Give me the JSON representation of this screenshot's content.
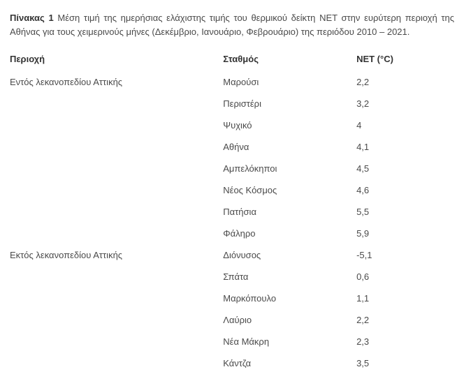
{
  "caption": {
    "lead": "Πίνακας 1",
    "text": " Μέση τιμή της ημερήσιας ελάχιστης τιμής του θερμικού δείκτη ΝΕΤ στην ευρύτερη περιοχή της Αθήνας για τους χειμερινούς μήνες (Δεκέμβριο, Ιανουάριο, Φεβρουάριο) της περιόδου 2010 – 2021."
  },
  "headers": {
    "region": "Περιοχή",
    "station": "Σταθμός",
    "net": "NET (°C)"
  },
  "groups": [
    {
      "region": "Εντός λεκανοπεδίου Αττικής",
      "rows": [
        {
          "station": "Μαρούσι",
          "net": "2,2"
        },
        {
          "station": "Περιστέρι",
          "net": "3,2"
        },
        {
          "station": "Ψυχικό",
          "net": "4"
        },
        {
          "station": "Αθήνα",
          "net": "4,1"
        },
        {
          "station": "Αμπελόκηποι",
          "net": "4,5"
        },
        {
          "station": "Νέος Κόσμος",
          "net": "4,6"
        },
        {
          "station": "Πατήσια",
          "net": "5,5"
        },
        {
          "station": "Φάληρο",
          "net": "5,9"
        }
      ]
    },
    {
      "region": "Εκτός λεκανοπεδίου Αττικής",
      "rows": [
        {
          "station": "Διόνυσος",
          "net": "-5,1"
        },
        {
          "station": "Σπάτα",
          "net": "0,6"
        },
        {
          "station": "Μαρκόπουλο",
          "net": "1,1"
        },
        {
          "station": "Λαύριο",
          "net": "2,2"
        },
        {
          "station": "Νέα Μάκρη",
          "net": "2,3"
        },
        {
          "station": "Κάντζα",
          "net": "3,5"
        }
      ]
    }
  ]
}
